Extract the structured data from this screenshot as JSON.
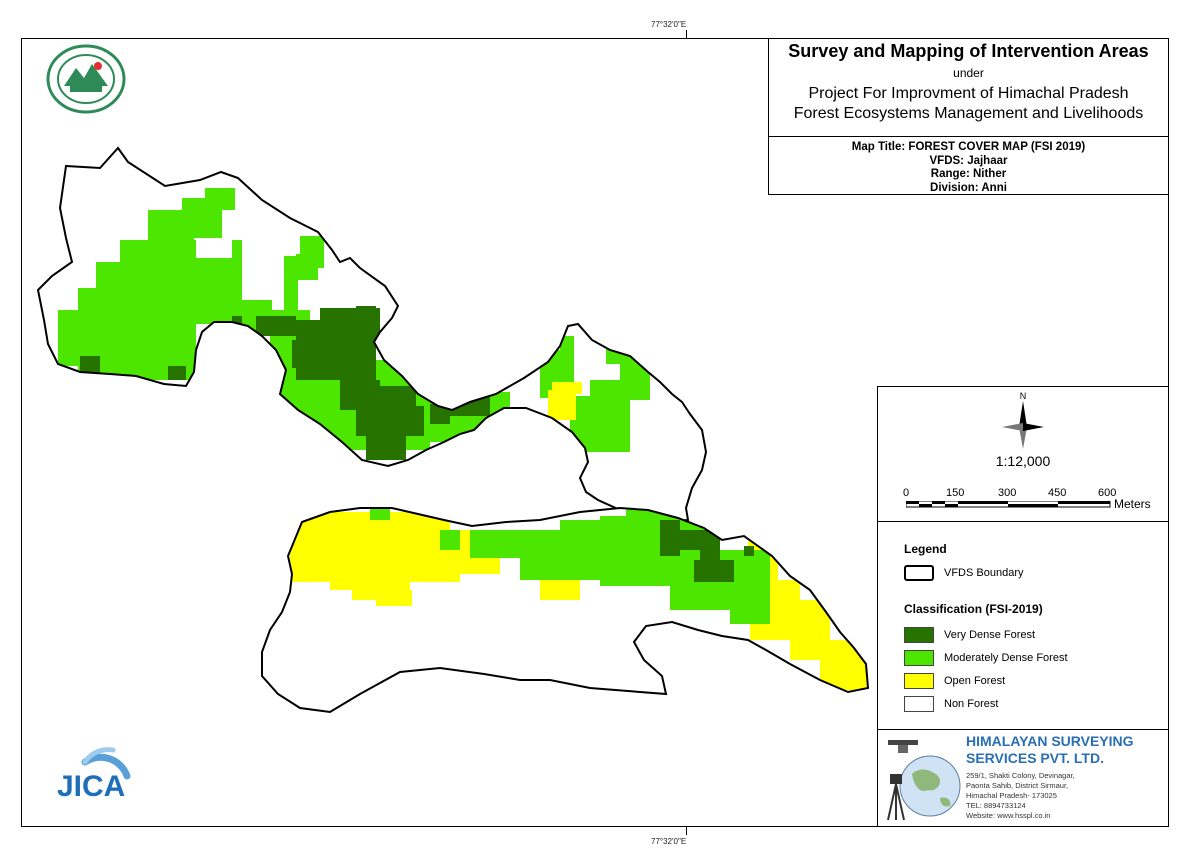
{
  "graticule": {
    "top_label": "77°32'0\"E",
    "bottom_label": "77°32'0\"E"
  },
  "title": {
    "main": "Survey and Mapping of Intervention Areas",
    "under": "under",
    "project_line1": "Project For Improvment of Himachal Pradesh",
    "project_line2": "Forest Ecosystems Management and Livelihoods"
  },
  "info": {
    "map_title": "Map Title: FOREST COVER MAP (FSI 2019)",
    "vfds": "VFDS: Jajhaar",
    "range": "Range: Nither",
    "division": "Division: Anni"
  },
  "north_arrow": {
    "label": "N"
  },
  "scale": {
    "ratio": "1:12,000",
    "ticks": [
      "0",
      "150",
      "300",
      "450",
      "600"
    ],
    "unit": "Meters"
  },
  "legend": {
    "title": "Legend",
    "boundary_label": "VFDS Boundary",
    "classification_title": "Classification (FSI-2019)",
    "classes": [
      {
        "label": "Very Dense Forest",
        "color": "#267300"
      },
      {
        "label": "Moderately Dense Forest",
        "color": "#4ce600"
      },
      {
        "label": "Open Forest",
        "color": "#ffff00"
      },
      {
        "label": "Non Forest",
        "color": "#ffffff"
      }
    ]
  },
  "company": {
    "name_line1": "HIMALAYAN SURVEYING",
    "name_line2": "SERVICES PVT. LTD.",
    "address": [
      "259/1, Shakti Colony, Devinagar,",
      "Paonta Sahib, District Sirmaur,",
      "Himachal Pradesh- 173025",
      "TEL: 8894733124",
      "Website: www.hsspl.co.in"
    ]
  },
  "logos": {
    "jica": "JICA",
    "hp_forest": "hp-forest-department-emblem"
  }
}
